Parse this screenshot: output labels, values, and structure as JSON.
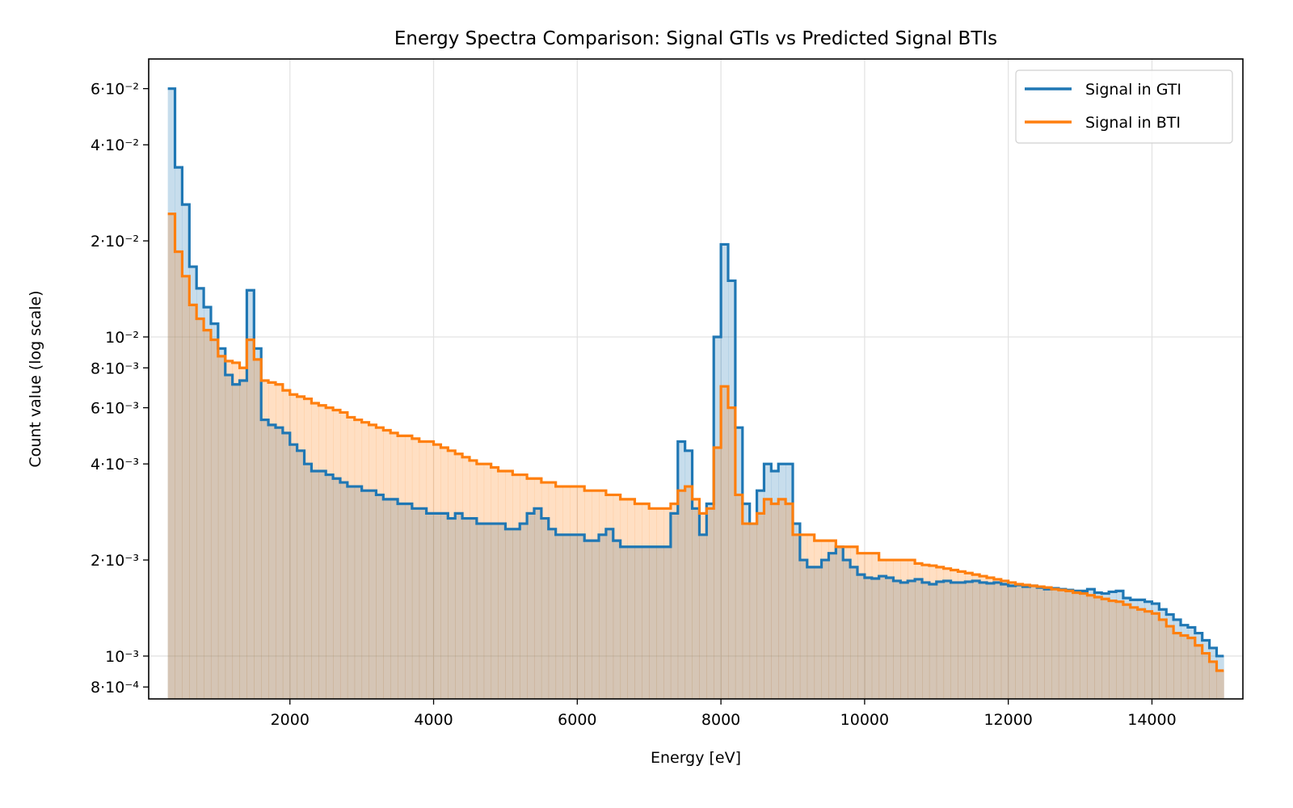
{
  "chart_data": {
    "type": "step-histogram",
    "title": "Energy Spectra Comparison: Signal GTIs vs Predicted Signal BTIs",
    "xlabel": "Energy [eV]",
    "ylabel": "Count value (log scale)",
    "xlim": [
      34,
      15266
    ],
    "ylim": [
      0.000734,
      0.0743
    ],
    "yscale": "log",
    "grid": true,
    "legend_position": "top-right",
    "xticks": [
      2000,
      4000,
      6000,
      8000,
      10000,
      12000,
      14000
    ],
    "xtick_labels": [
      "2000",
      "4000",
      "6000",
      "8000",
      "10000",
      "12000",
      "14000"
    ],
    "yticks": [
      0.06,
      0.04,
      0.02,
      0.01,
      0.008,
      0.006,
      0.004,
      0.002,
      0.001,
      0.0008
    ],
    "ytick_labels": [
      "6·10⁻²",
      "4·10⁻²",
      "2·10⁻²",
      "10⁻²",
      "8·10⁻³",
      "6·10⁻³",
      "4·10⁻³",
      "2·10⁻³",
      "10⁻³",
      "8·10⁻⁴"
    ],
    "bin_start": 300,
    "bin_width": 100,
    "series": [
      {
        "name": "Signal in GTI",
        "color": "#1f77b4",
        "values": [
          0.06,
          0.034,
          0.026,
          0.0166,
          0.0142,
          0.0124,
          0.011,
          0.0092,
          0.0076,
          0.0071,
          0.0073,
          0.014,
          0.0092,
          0.0055,
          0.0053,
          0.0052,
          0.005,
          0.0046,
          0.0044,
          0.004,
          0.0038,
          0.0038,
          0.0037,
          0.0036,
          0.0035,
          0.0034,
          0.0034,
          0.0033,
          0.0033,
          0.0032,
          0.0031,
          0.0031,
          0.003,
          0.003,
          0.0029,
          0.0029,
          0.0028,
          0.0028,
          0.0028,
          0.0027,
          0.0028,
          0.0027,
          0.0027,
          0.0026,
          0.0026,
          0.0026,
          0.0026,
          0.0025,
          0.0025,
          0.0026,
          0.0028,
          0.0029,
          0.0027,
          0.0025,
          0.0024,
          0.0024,
          0.0024,
          0.0024,
          0.0023,
          0.0023,
          0.0024,
          0.0025,
          0.0023,
          0.0022,
          0.0022,
          0.0022,
          0.0022,
          0.0022,
          0.0022,
          0.0022,
          0.0028,
          0.0047,
          0.0044,
          0.0029,
          0.0024,
          0.003,
          0.01,
          0.0195,
          0.015,
          0.0052,
          0.003,
          0.0026,
          0.0033,
          0.004,
          0.0038,
          0.004,
          0.004,
          0.0026,
          0.002,
          0.0019,
          0.0019,
          0.002,
          0.0021,
          0.0022,
          0.002,
          0.0019,
          0.0018,
          0.00176,
          0.00175,
          0.00178,
          0.00176,
          0.00172,
          0.0017,
          0.00172,
          0.00174,
          0.0017,
          0.00168,
          0.00171,
          0.00172,
          0.0017,
          0.0017,
          0.00171,
          0.00172,
          0.0017,
          0.00169,
          0.0017,
          0.00168,
          0.00166,
          0.00167,
          0.00165,
          0.00166,
          0.00164,
          0.00162,
          0.00163,
          0.00162,
          0.00161,
          0.0016,
          0.0016,
          0.00162,
          0.00158,
          0.00157,
          0.00159,
          0.0016,
          0.00152,
          0.0015,
          0.0015,
          0.00148,
          0.00146,
          0.0014,
          0.00135,
          0.0013,
          0.00125,
          0.00123,
          0.00118,
          0.00112,
          0.00106,
          0.001
        ]
      },
      {
        "name": "Signal in BTI",
        "color": "#ff7f0e",
        "values": [
          0.0243,
          0.0185,
          0.0155,
          0.0126,
          0.0114,
          0.0105,
          0.0098,
          0.0087,
          0.0084,
          0.0083,
          0.008,
          0.0098,
          0.0085,
          0.0073,
          0.0072,
          0.0071,
          0.0068,
          0.0066,
          0.0065,
          0.0064,
          0.0062,
          0.0061,
          0.006,
          0.0059,
          0.0058,
          0.0056,
          0.0055,
          0.0054,
          0.0053,
          0.0052,
          0.0051,
          0.005,
          0.0049,
          0.0049,
          0.0048,
          0.0047,
          0.0047,
          0.0046,
          0.0045,
          0.0044,
          0.0043,
          0.0042,
          0.0041,
          0.004,
          0.004,
          0.0039,
          0.0038,
          0.0038,
          0.0037,
          0.0037,
          0.0036,
          0.0036,
          0.0035,
          0.0035,
          0.0034,
          0.0034,
          0.0034,
          0.0034,
          0.0033,
          0.0033,
          0.0033,
          0.0032,
          0.0032,
          0.0031,
          0.0031,
          0.003,
          0.003,
          0.0029,
          0.0029,
          0.0029,
          0.003,
          0.0033,
          0.0034,
          0.0031,
          0.0028,
          0.0029,
          0.0045,
          0.007,
          0.006,
          0.0032,
          0.0026,
          0.0026,
          0.0028,
          0.0031,
          0.003,
          0.0031,
          0.003,
          0.0024,
          0.0024,
          0.0024,
          0.0023,
          0.0023,
          0.0023,
          0.0022,
          0.0022,
          0.0022,
          0.0021,
          0.0021,
          0.0021,
          0.002,
          0.002,
          0.002,
          0.002,
          0.002,
          0.00195,
          0.00193,
          0.00192,
          0.0019,
          0.00188,
          0.00186,
          0.00184,
          0.00182,
          0.0018,
          0.00178,
          0.00176,
          0.00174,
          0.00172,
          0.0017,
          0.00168,
          0.00167,
          0.00166,
          0.00165,
          0.00164,
          0.00162,
          0.00161,
          0.0016,
          0.00158,
          0.00157,
          0.00155,
          0.00153,
          0.00151,
          0.00149,
          0.00148,
          0.00145,
          0.00142,
          0.0014,
          0.00138,
          0.00136,
          0.0013,
          0.00124,
          0.00118,
          0.00116,
          0.00114,
          0.00108,
          0.00102,
          0.00096,
          0.0009
        ]
      }
    ]
  }
}
